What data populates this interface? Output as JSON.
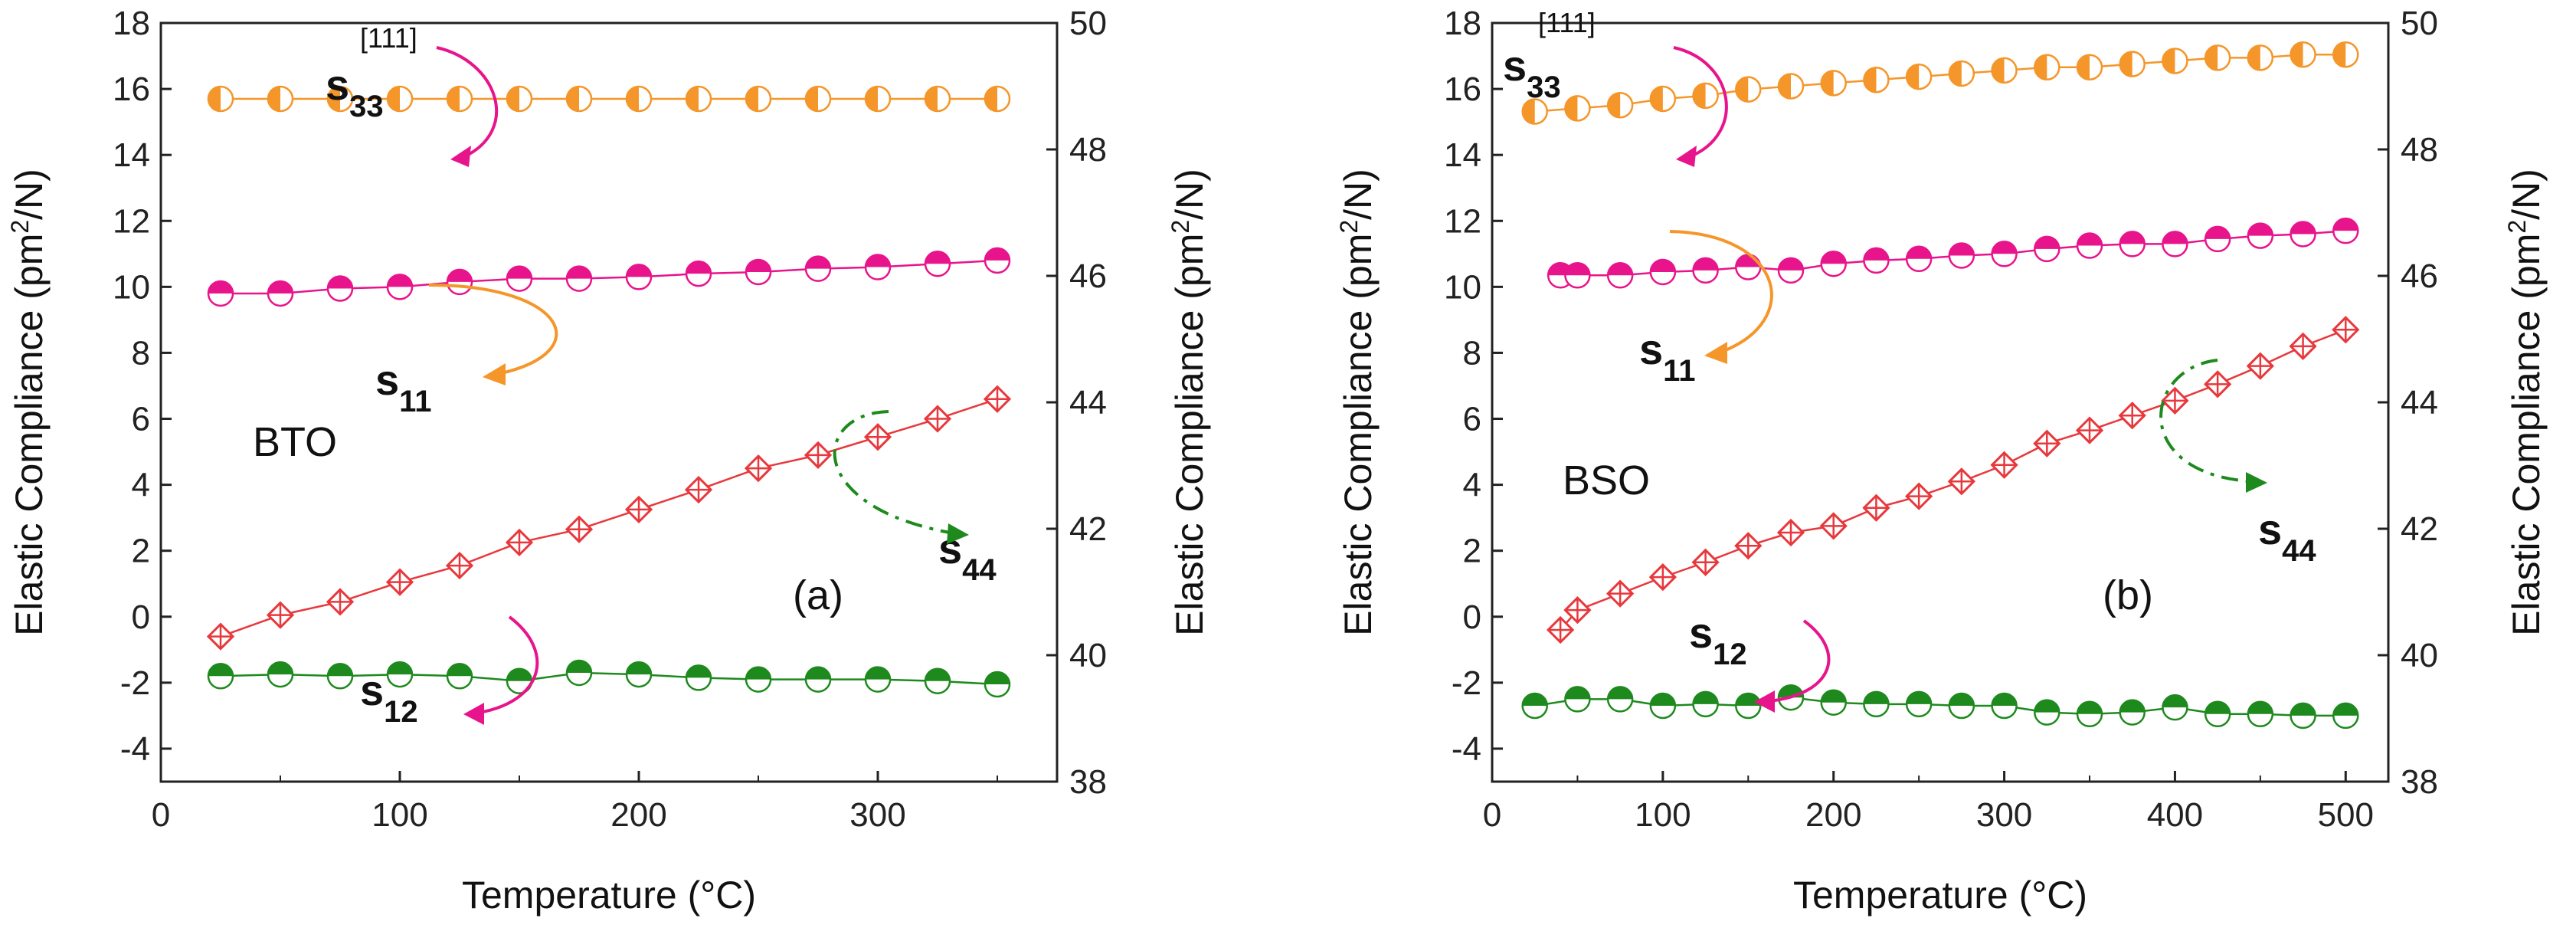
{
  "colors": {
    "s33": "#f5962a",
    "s11": "#e8148c",
    "s44": "#e8383c",
    "s12": "#1e8a1e",
    "arrow_s33": "#e8148c",
    "arrow_s11": "#f5962a",
    "arrow_s44": "#1e8a1e",
    "arrow_s12": "#e8148c"
  },
  "chart_data": [
    {
      "panel": "(a)",
      "type": "line",
      "material": "BTO",
      "xlabel": "Temperature (°C)",
      "ylabel_left": "Elastic Compliance (pm²/N)",
      "ylabel_right": "Elastic Compliance (pm²/N)",
      "xlim": [
        0,
        375
      ],
      "xticks": [
        0,
        100,
        200,
        300
      ],
      "ylim_left": [
        -5,
        18
      ],
      "yticks_left": [
        -4,
        -2,
        0,
        2,
        4,
        6,
        8,
        10,
        12,
        14,
        16,
        18
      ],
      "ylim_right": [
        38,
        50
      ],
      "yticks_right": [
        38,
        40,
        42,
        44,
        46,
        48,
        50
      ],
      "series": [
        {
          "name": "s33",
          "sup": "[111]",
          "axis": "right",
          "x": [
            25,
            50,
            75,
            100,
            125,
            150,
            175,
            200,
            225,
            250,
            275,
            300,
            325,
            350
          ],
          "values": [
            48.8,
            48.8,
            48.8,
            48.8,
            48.8,
            48.8,
            48.8,
            48.8,
            48.8,
            48.8,
            48.8,
            48.8,
            48.8,
            48.8
          ]
        },
        {
          "name": "s11",
          "axis": "left",
          "x": [
            25,
            50,
            75,
            100,
            125,
            150,
            175,
            200,
            225,
            250,
            275,
            300,
            325,
            350
          ],
          "values": [
            9.8,
            9.8,
            9.95,
            10.0,
            10.15,
            10.25,
            10.25,
            10.3,
            10.4,
            10.45,
            10.55,
            10.6,
            10.7,
            10.8
          ]
        },
        {
          "name": "s44",
          "axis": "left",
          "x": [
            25,
            50,
            75,
            100,
            125,
            150,
            175,
            200,
            225,
            250,
            275,
            300,
            325,
            350
          ],
          "values": [
            -0.6,
            0.05,
            0.45,
            1.05,
            1.55,
            2.25,
            2.65,
            3.25,
            3.85,
            4.5,
            4.9,
            5.45,
            6.0,
            6.6
          ]
        },
        {
          "name": "s12",
          "axis": "left",
          "x": [
            25,
            50,
            75,
            100,
            125,
            150,
            175,
            200,
            225,
            250,
            275,
            300,
            325,
            350
          ],
          "values": [
            -1.8,
            -1.75,
            -1.8,
            -1.75,
            -1.8,
            -1.95,
            -1.7,
            -1.75,
            -1.85,
            -1.9,
            -1.9,
            -1.9,
            -1.95,
            -2.05
          ]
        }
      ],
      "labels": {
        "s33": "s",
        "s11": "s",
        "s44": "s",
        "s12": "s",
        "s33_sub": "33",
        "s11_sub": "11",
        "s44_sub": "44",
        "s12_sub": "12"
      }
    },
    {
      "panel": "(b)",
      "type": "line",
      "material": "BSO",
      "xlabel": "Temperature (°C)",
      "ylabel_left": "Elastic Compliance (pm²/N)",
      "ylabel_right": "Elastic Compliance (pm²/N)",
      "xlim": [
        0,
        525
      ],
      "xticks": [
        0,
        100,
        200,
        300,
        400,
        500
      ],
      "ylim_left": [
        -5,
        18
      ],
      "yticks_left": [
        -4,
        -2,
        0,
        2,
        4,
        6,
        8,
        10,
        12,
        14,
        16,
        18
      ],
      "ylim_right": [
        38,
        50
      ],
      "yticks_right": [
        38,
        40,
        42,
        44,
        46,
        48,
        50
      ],
      "series": [
        {
          "name": "s33",
          "sup": "[111]",
          "axis": "right",
          "x": [
            25,
            50,
            75,
            100,
            125,
            150,
            175,
            200,
            225,
            250,
            275,
            300,
            325,
            350,
            375,
            400,
            425,
            450,
            475,
            500
          ],
          "values": [
            48.6,
            48.65,
            48.7,
            48.8,
            48.85,
            48.95,
            49.0,
            49.05,
            49.1,
            49.15,
            49.2,
            49.25,
            49.3,
            49.3,
            49.35,
            49.4,
            49.45,
            49.45,
            49.5,
            49.5
          ]
        },
        {
          "name": "s11",
          "axis": "left",
          "x": [
            40,
            50,
            75,
            100,
            125,
            150,
            175,
            200,
            225,
            250,
            275,
            300,
            325,
            350,
            375,
            400,
            425,
            450,
            475,
            500
          ],
          "values": [
            10.35,
            10.35,
            10.35,
            10.45,
            10.5,
            10.6,
            10.5,
            10.7,
            10.8,
            10.85,
            10.95,
            11.0,
            11.15,
            11.25,
            11.3,
            11.3,
            11.45,
            11.55,
            11.6,
            11.7
          ]
        },
        {
          "name": "s44",
          "axis": "left",
          "x": [
            40,
            50,
            75,
            100,
            125,
            150,
            175,
            200,
            225,
            250,
            275,
            300,
            325,
            350,
            375,
            400,
            425,
            450,
            475,
            500
          ],
          "values": [
            -0.4,
            0.2,
            0.7,
            1.2,
            1.65,
            2.15,
            2.55,
            2.75,
            3.3,
            3.65,
            4.1,
            4.6,
            5.25,
            5.65,
            6.1,
            6.55,
            7.05,
            7.6,
            8.2,
            8.7
          ]
        },
        {
          "name": "s12",
          "axis": "left",
          "x": [
            25,
            50,
            75,
            100,
            125,
            150,
            175,
            200,
            225,
            250,
            275,
            300,
            325,
            350,
            375,
            400,
            425,
            450,
            475,
            500
          ],
          "values": [
            -2.7,
            -2.5,
            -2.5,
            -2.7,
            -2.65,
            -2.7,
            -2.45,
            -2.6,
            -2.65,
            -2.65,
            -2.7,
            -2.7,
            -2.9,
            -2.95,
            -2.9,
            -2.75,
            -2.95,
            -2.95,
            -3.0,
            -3.0
          ]
        }
      ],
      "labels": {
        "s33": "s",
        "s11": "s",
        "s44": "s",
        "s12": "s",
        "s33_sub": "33",
        "s11_sub": "11",
        "s44_sub": "44",
        "s12_sub": "12"
      }
    }
  ]
}
